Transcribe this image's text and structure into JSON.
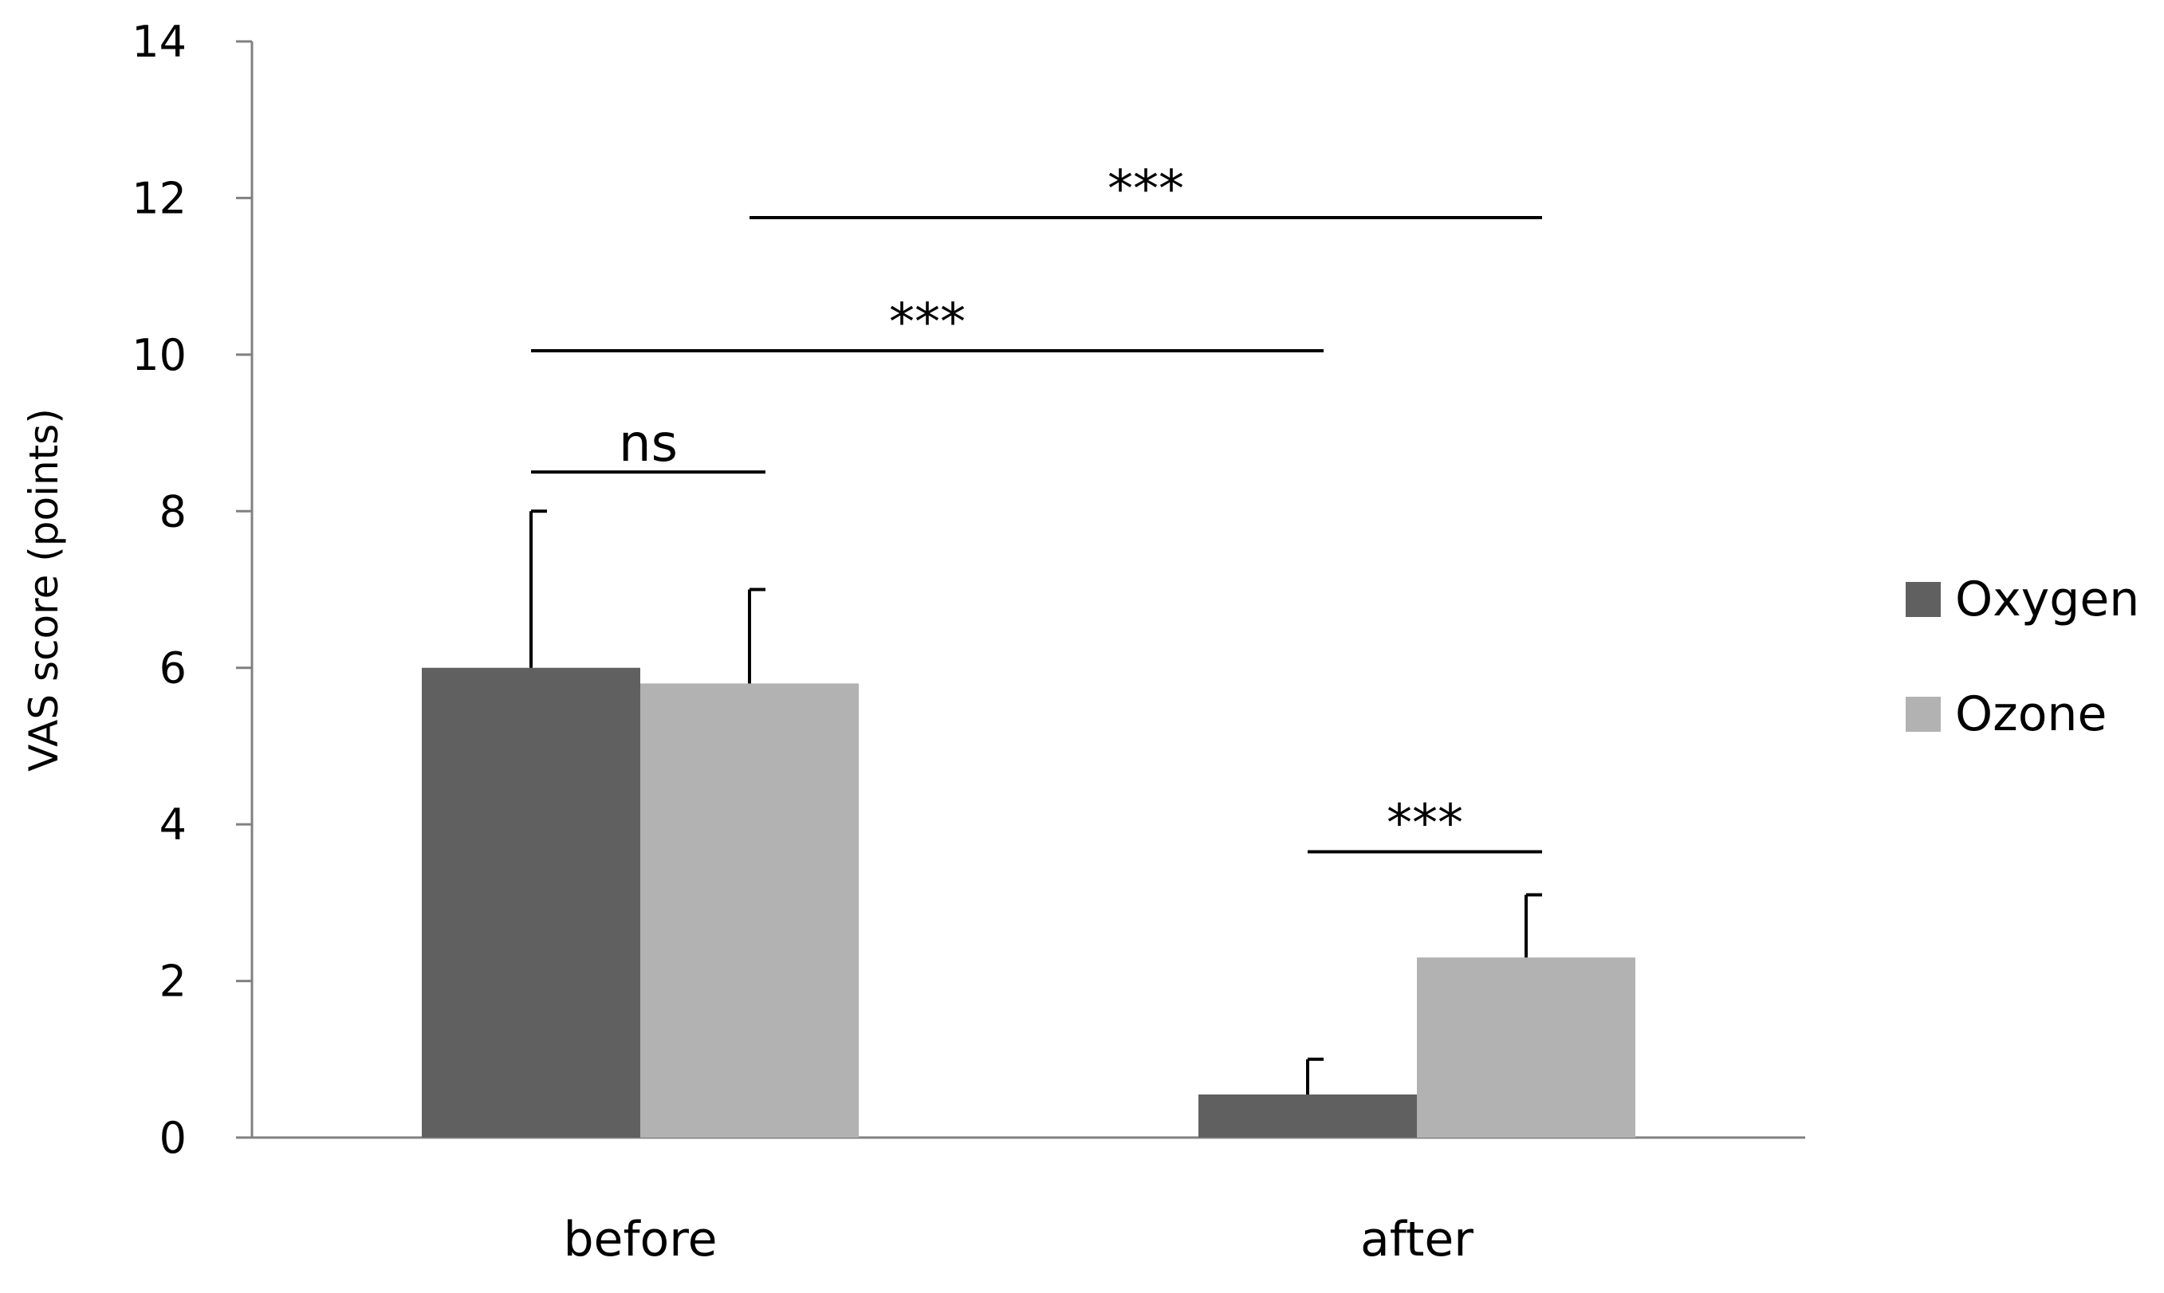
{
  "chart_data": {
    "type": "bar",
    "title": "",
    "xlabel": "",
    "ylabel": "VAS score (points)",
    "ylim": [
      0,
      14
    ],
    "yticks": [
      0,
      2,
      4,
      6,
      8,
      10,
      12,
      14
    ],
    "categories": [
      "before",
      "after"
    ],
    "grid": false,
    "legend_position": "right",
    "series": [
      {
        "name": "Oxygen",
        "color": "#606060",
        "values": [
          6.0,
          0.55
        ],
        "errors": [
          2.0,
          0.45
        ]
      },
      {
        "name": "Ozone",
        "color": "#b2b2b2",
        "values": [
          5.8,
          2.3
        ],
        "errors": [
          1.2,
          0.8
        ]
      }
    ],
    "significance": [
      {
        "label": "ns",
        "from": {
          "category": 0,
          "series": 0
        },
        "to": {
          "category": 0,
          "series": 1
        },
        "y": 8.5
      },
      {
        "label": "***",
        "from": {
          "category": 0,
          "series": 0
        },
        "to": {
          "category": 1,
          "series": 0
        },
        "y": 10.05
      },
      {
        "label": "***",
        "from": {
          "category": 0,
          "series": 1
        },
        "to": {
          "category": 1,
          "series": 1
        },
        "y": 11.75
      },
      {
        "label": "***",
        "from": {
          "category": 1,
          "series": 0
        },
        "to": {
          "category": 1,
          "series": 1
        },
        "y": 3.65
      }
    ]
  }
}
